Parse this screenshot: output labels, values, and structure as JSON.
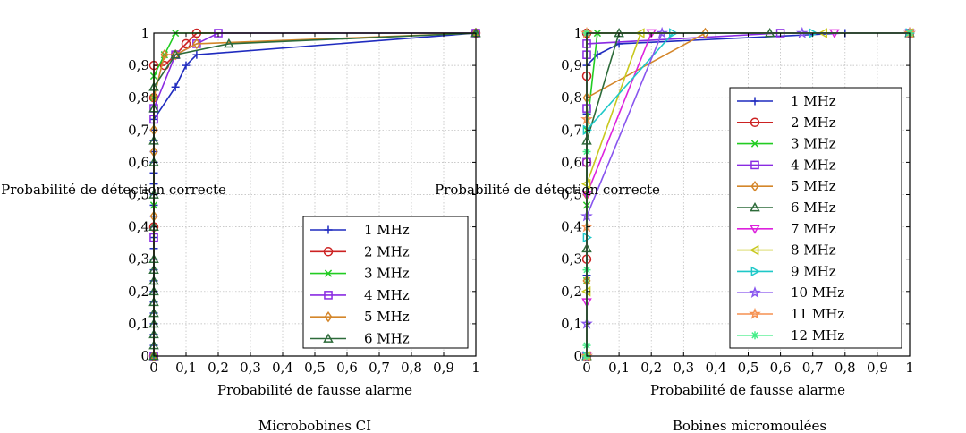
{
  "figure": {
    "charts": [
      "left",
      "right"
    ]
  },
  "chart_data": [
    {
      "id": "left",
      "type": "line",
      "title": "Microbobines CI",
      "xlabel": "Probabilité de fausse alarme",
      "ylabel": "Probabilité de détection correcte",
      "xlim": [
        0,
        1
      ],
      "ylim": [
        0,
        1
      ],
      "xticks": [
        "0",
        "0,1",
        "0,2",
        "0,3",
        "0,4",
        "0,5",
        "0,6",
        "0,7",
        "0,8",
        "0,9",
        "1"
      ],
      "yticks": [
        "0",
        "0,1",
        "0,2",
        "0,3",
        "0,4",
        "0,5",
        "0,6",
        "0,7",
        "0,8",
        "0,9",
        "1"
      ],
      "grid": true,
      "legend_position": "lower-right",
      "series": [
        {
          "name": "1 MHz",
          "color": "#1f2bbf",
          "marker": "plus",
          "x": [
            0,
            0,
            0,
            0,
            0,
            0,
            0,
            0,
            0,
            0,
            0,
            0,
            0,
            0,
            0,
            0,
            0,
            0,
            0,
            0,
            0,
            0,
            0,
            0.067,
            0.1,
            0.133,
            1
          ],
          "y": [
            0,
            0.033,
            0.067,
            0.1,
            0.133,
            0.167,
            0.2,
            0.233,
            0.267,
            0.3,
            0.333,
            0.367,
            0.4,
            0.433,
            0.467,
            0.5,
            0.533,
            0.567,
            0.6,
            0.633,
            0.667,
            0.7,
            0.733,
            0.833,
            0.9,
            0.933,
            1
          ]
        },
        {
          "name": "2 MHz",
          "color": "#cc2222",
          "marker": "circle",
          "x": [
            0,
            0,
            0,
            0,
            0.033,
            0.067,
            0.1,
            0.133,
            1
          ],
          "y": [
            0,
            0.4,
            0.8,
            0.9,
            0.9,
            0.933,
            0.967,
            1,
            1
          ]
        },
        {
          "name": "3 MHz",
          "color": "#22cc22",
          "marker": "x",
          "x": [
            0,
            0,
            0,
            0,
            0.033,
            0.067,
            1
          ],
          "y": [
            0,
            0.467,
            0.8,
            0.867,
            0.933,
            1,
            1
          ]
        },
        {
          "name": "4 MHz",
          "color": "#8a2be2",
          "marker": "square",
          "x": [
            0,
            0,
            0,
            0,
            0.067,
            0.133,
            0.2,
            1
          ],
          "y": [
            0,
            0.367,
            0.733,
            0.767,
            0.933,
            0.967,
            1,
            1
          ]
        },
        {
          "name": "5 MHz",
          "color": "#d4862a",
          "marker": "diamond",
          "x": [
            0,
            0,
            0,
            0,
            0,
            0.033,
            0.067,
            0.133,
            1
          ],
          "y": [
            0,
            0.433,
            0.633,
            0.7,
            0.8,
            0.933,
            0.933,
            0.967,
            1
          ]
        },
        {
          "name": "6 MHz",
          "color": "#2d6b3a",
          "marker": "triangle",
          "x": [
            0,
            0,
            0,
            0,
            0,
            0,
            0,
            0,
            0,
            0,
            0,
            0,
            0,
            0,
            0,
            0,
            0.067,
            0.233,
            1
          ],
          "y": [
            0,
            0.033,
            0.067,
            0.1,
            0.133,
            0.167,
            0.2,
            0.233,
            0.267,
            0.3,
            0.4,
            0.5,
            0.6,
            0.667,
            0.767,
            0.833,
            0.933,
            0.967,
            1
          ]
        }
      ]
    },
    {
      "id": "right",
      "type": "line",
      "title": "Bobines micromoulées",
      "xlabel": "Probabilité de fausse alarme",
      "ylabel": "Probabilité de détection correcte",
      "xlim": [
        0,
        1
      ],
      "ylim": [
        0,
        1
      ],
      "xticks": [
        "0",
        "0,1",
        "0,2",
        "0,3",
        "0,4",
        "0,5",
        "0,6",
        "0,7",
        "0,8",
        "0,9",
        "1"
      ],
      "yticks": [
        "0",
        "0,1",
        "0,2",
        "0,3",
        "0,4",
        "0,5",
        "0,6",
        "0,7",
        "0,8",
        "0,9",
        "1"
      ],
      "grid": true,
      "legend_position": "right",
      "series": [
        {
          "name": "1 MHz",
          "color": "#1f2bbf",
          "marker": "plus",
          "x": [
            0,
            0,
            0,
            0,
            0,
            0.033,
            0.1,
            0.8,
            1
          ],
          "y": [
            0,
            0.25,
            0.5,
            0.75,
            0.9,
            0.933,
            0.967,
            1,
            1
          ]
        },
        {
          "name": "2 MHz",
          "color": "#cc2222",
          "marker": "circle",
          "x": [
            0,
            0,
            0,
            0,
            0,
            1
          ],
          "y": [
            0,
            0.3,
            0.6,
            0.867,
            1,
            1
          ]
        },
        {
          "name": "3 MHz",
          "color": "#22cc22",
          "marker": "x",
          "x": [
            0,
            0,
            0,
            0,
            0.033,
            1
          ],
          "y": [
            0,
            0.233,
            0.467,
            0.7,
            1,
            1
          ]
        },
        {
          "name": "4 MHz",
          "color": "#8a2be2",
          "marker": "square",
          "x": [
            0,
            0,
            0,
            0,
            0,
            0.6,
            1
          ],
          "y": [
            0,
            0.6,
            0.767,
            0.933,
            0.967,
            1,
            1
          ]
        },
        {
          "name": "5 MHz",
          "color": "#d4862a",
          "marker": "diamond",
          "x": [
            0,
            0,
            0,
            0,
            0.367,
            1
          ],
          "y": [
            0,
            0.233,
            0.5,
            0.8,
            1,
            1
          ]
        },
        {
          "name": "6 MHz",
          "color": "#2d6b3a",
          "marker": "triangle",
          "x": [
            0,
            0,
            0,
            0.1,
            0.567,
            1
          ],
          "y": [
            0,
            0.333,
            0.667,
            1,
            1,
            1
          ]
        },
        {
          "name": "7 MHz",
          "color": "#dd22dd",
          "marker": "triangle-down",
          "x": [
            0,
            0,
            0,
            0.2,
            0.767,
            1
          ],
          "y": [
            0,
            0.167,
            0.5,
            1,
            1,
            1
          ]
        },
        {
          "name": "8 MHz",
          "color": "#c8c81e",
          "marker": "triangle-left",
          "x": [
            0,
            0,
            0,
            0.167,
            0.733,
            1
          ],
          "y": [
            0,
            0.2,
            0.533,
            1,
            1,
            1
          ]
        },
        {
          "name": "9 MHz",
          "color": "#1ec8c8",
          "marker": "triangle-right",
          "x": [
            0,
            0,
            0,
            0.267,
            0.7,
            1
          ],
          "y": [
            0,
            0.367,
            0.7,
            1,
            1,
            1
          ]
        },
        {
          "name": "10 MHz",
          "color": "#8855ee",
          "marker": "star",
          "x": [
            0,
            0,
            0,
            0.233,
            0.667,
            1
          ],
          "y": [
            0,
            0.1,
            0.433,
            1,
            1,
            1
          ]
        },
        {
          "name": "11 MHz",
          "color": "#f59050",
          "marker": "star",
          "x": [
            0,
            0,
            0,
            0,
            1
          ],
          "y": [
            0,
            0.4,
            0.733,
            1,
            1
          ]
        },
        {
          "name": "12 MHz",
          "color": "#44ee88",
          "marker": "asterisk",
          "x": [
            0,
            0,
            0,
            0,
            0,
            1
          ],
          "y": [
            0,
            0.033,
            0.267,
            0.633,
            1,
            1
          ]
        }
      ]
    }
  ]
}
